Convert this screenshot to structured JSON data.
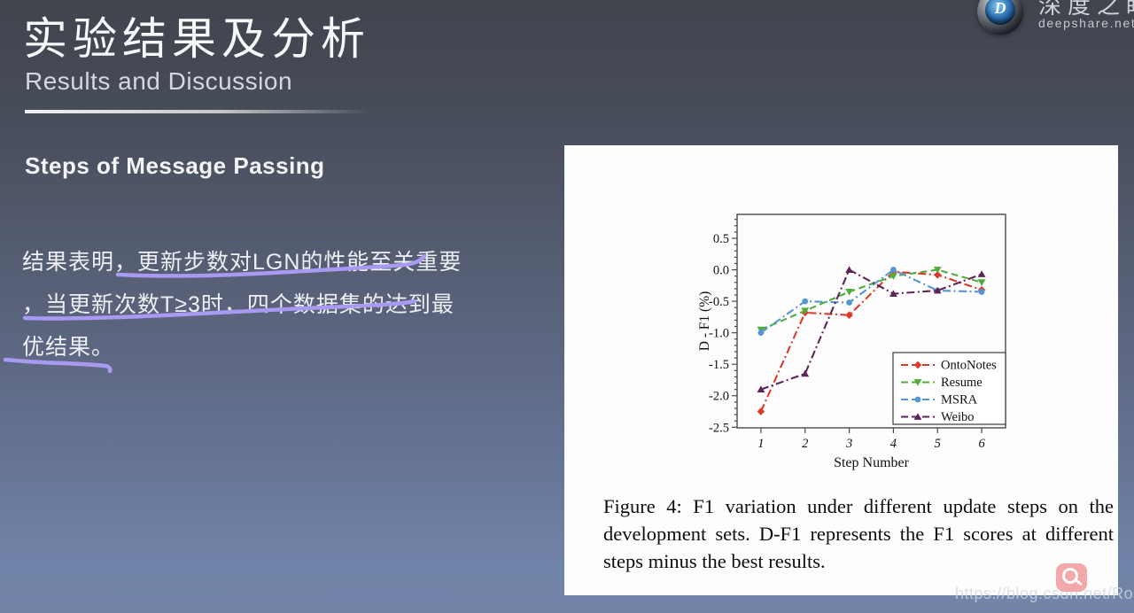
{
  "header": {
    "title_cn": "实验结果及分析",
    "subtitle": "Results and Discussion"
  },
  "brand": {
    "name_cn": "深度之眼",
    "domain": "deepshare.net",
    "logo_letter": "D"
  },
  "content": {
    "heading": "Steps of Message Passing",
    "lines": [
      "结果表明，更新步数对LGN的性能至关重要",
      "，当更新次数T≥3时，四个数据集的达到最",
      "优结果。"
    ]
  },
  "figure": {
    "caption": "Figure 4: F1 variation under different update steps on the development sets. D-F1 represents the F1 scores at different steps minus the best results."
  },
  "watermark": "https://blog.csdn.net/Rock_y",
  "colors": {
    "annotation": "#a79af0",
    "magnifier": "#f3a8aa"
  },
  "chart_data": {
    "type": "line",
    "title": "",
    "xlabel": "Step Number",
    "ylabel": "D - F1 (%)",
    "x": [
      1,
      2,
      3,
      4,
      5,
      6
    ],
    "xtick_labels": [
      "1",
      "2",
      "3",
      "4",
      "5",
      "6"
    ],
    "yticks": [
      0.5,
      0.0,
      -0.5,
      -1.0,
      -1.5,
      -2.0,
      -2.5
    ],
    "ytick_labels": [
      "0.5",
      "0.0",
      "-0.5",
      "-1.0",
      "-1.5",
      "-2.0",
      "-2.5"
    ],
    "xlim": [
      0.46,
      6.54
    ],
    "ylim": [
      -2.51,
      0.88
    ],
    "grid": false,
    "legend_position": "lower right",
    "series": [
      {
        "name": "OntoNotes",
        "color": "#dc3a2b",
        "marker": "diamond",
        "dash": "dashdot",
        "values": [
          -2.25,
          -0.68,
          -0.72,
          -0.03,
          -0.08,
          -0.32
        ]
      },
      {
        "name": "Resume",
        "color": "#50ad3c",
        "marker": "triangle-down",
        "dash": "dashed",
        "values": [
          -0.95,
          -0.65,
          -0.35,
          -0.1,
          0.0,
          -0.2
        ]
      },
      {
        "name": "MSRA",
        "color": "#5795d2",
        "marker": "circle",
        "dash": "dashdot",
        "values": [
          -1.0,
          -0.5,
          -0.52,
          0.0,
          -0.33,
          -0.35
        ]
      },
      {
        "name": "Weibo",
        "color": "#5e2457",
        "marker": "triangle-up",
        "dash": "dashdot",
        "values": [
          -1.9,
          -1.65,
          0.0,
          -0.38,
          -0.33,
          -0.07
        ]
      }
    ]
  }
}
